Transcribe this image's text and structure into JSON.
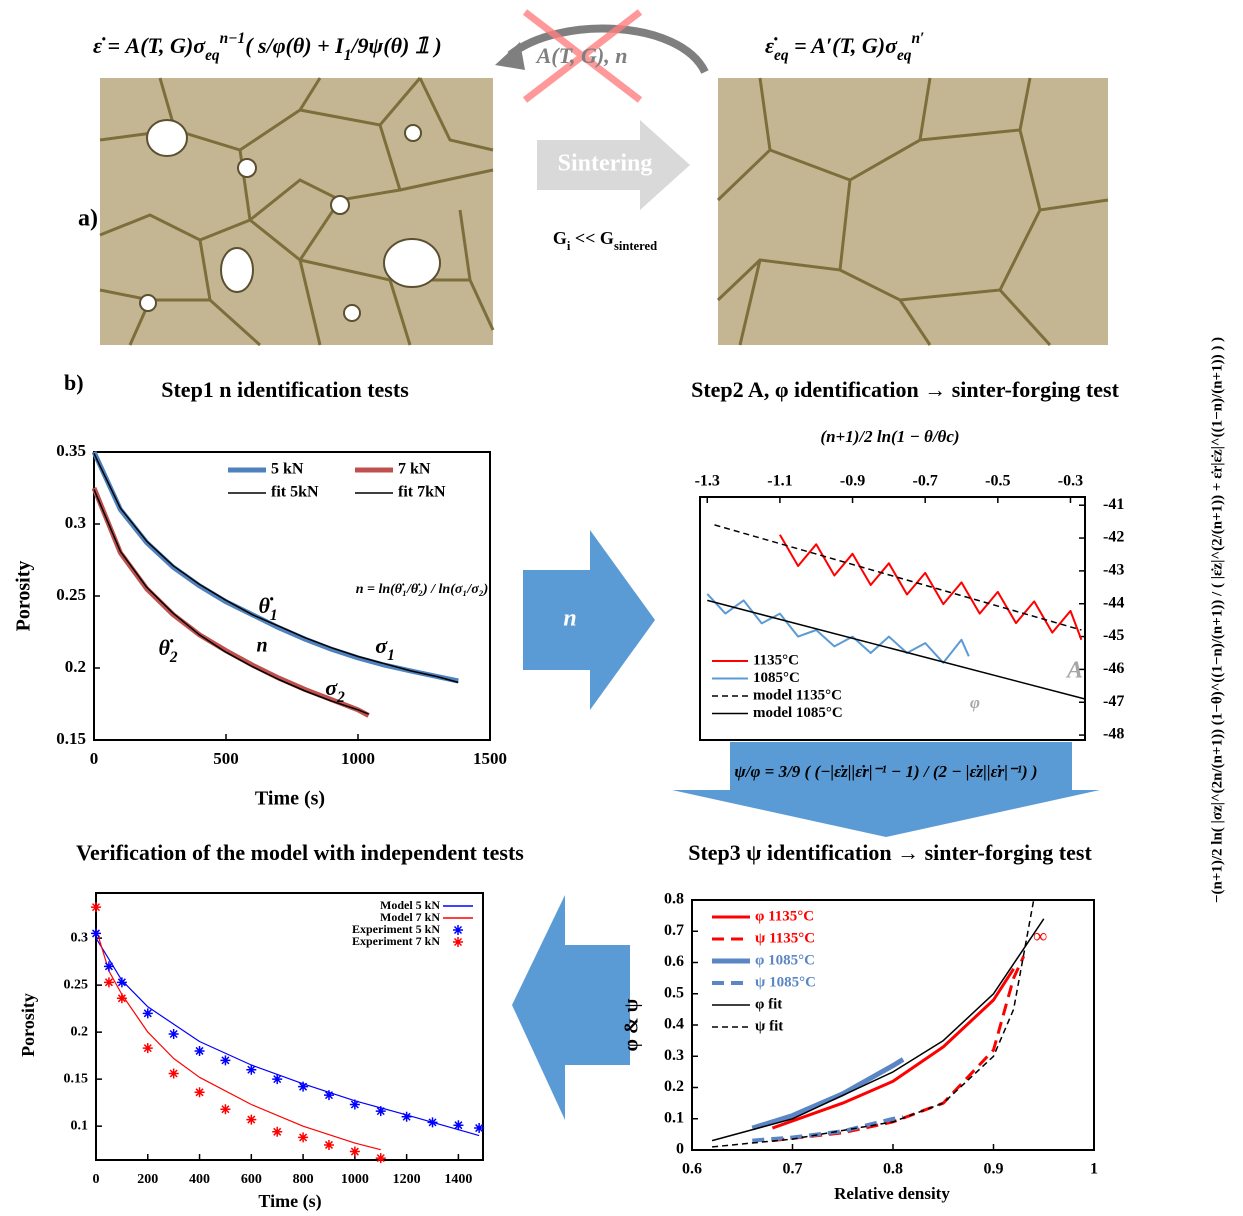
{
  "figure": {
    "eq_left": [
      "ε̇ = A(T, G)σ",
      {
        "sub": "eq"
      },
      {
        "sup": "n−1"
      },
      "( s/φ(θ) + I",
      {
        "sub": "1"
      },
      "/9ψ(θ) 𝟙 )"
    ],
    "crossed": "A(T, G), n",
    "eq_right": [
      "ε̇",
      {
        "sub": "eq"
      },
      " = A′(T, G)σ",
      {
        "sub": "eq"
      },
      {
        "sup": "n′"
      }
    ],
    "sintering": "Sintering",
    "panel_a": "a)",
    "grain_relation": [
      "G",
      {
        "sub": "i"
      },
      " << G",
      {
        "sub": "sintered"
      }
    ],
    "panel_b": "b)",
    "arrow_n": "n",
    "arrow_eq": "ψ/φ = 3/9 ( (−|ε̇z||ε̇r|⁻¹ − 1) / (2 − |ε̇z||ε̇r|⁻¹) )"
  },
  "chart_data": [
    {
      "type": "line",
      "title": "Step1 n identification tests",
      "xlabel": "Time (s)",
      "ylabel": "Porosity",
      "xlim": [
        0,
        1500
      ],
      "xticks": [
        0,
        500,
        1000,
        1500
      ],
      "ylim": [
        0.15,
        0.35
      ],
      "yticks": [
        0.15,
        0.2,
        0.25,
        0.3,
        0.35
      ],
      "series": [
        {
          "name": "5 kN",
          "color": "#4f81bd",
          "width": 5,
          "x": [
            0,
            100,
            200,
            300,
            400,
            500,
            600,
            700,
            800,
            900,
            1000,
            1100,
            1200,
            1300,
            1380
          ],
          "values": [
            0.35,
            0.31,
            0.287,
            0.27,
            0.257,
            0.246,
            0.237,
            0.228,
            0.22,
            0.213,
            0.207,
            0.202,
            0.198,
            0.194,
            0.191
          ]
        },
        {
          "name": "7 kN",
          "color": "#c0504d",
          "width": 5,
          "x": [
            0,
            100,
            200,
            300,
            400,
            500,
            600,
            700,
            800,
            900,
            1000,
            1040
          ],
          "values": [
            0.325,
            0.28,
            0.255,
            0.237,
            0.223,
            0.212,
            0.202,
            0.193,
            0.185,
            0.178,
            0.171,
            0.167
          ]
        },
        {
          "name": "fit 5kN",
          "color": "#000000",
          "width": 1.5,
          "x": [
            0,
            100,
            200,
            300,
            400,
            500,
            600,
            700,
            800,
            900,
            1000,
            1100,
            1200,
            1300,
            1380
          ],
          "values": [
            0.349,
            0.311,
            0.288,
            0.271,
            0.258,
            0.247,
            0.237,
            0.229,
            0.221,
            0.214,
            0.208,
            0.203,
            0.198,
            0.194,
            0.19
          ]
        },
        {
          "name": "fit 7kN",
          "color": "#000000",
          "width": 1.5,
          "x": [
            0,
            100,
            200,
            300,
            400,
            500,
            600,
            700,
            800,
            900,
            1000,
            1040
          ],
          "values": [
            0.324,
            0.281,
            0.256,
            0.238,
            0.223,
            0.211,
            0.201,
            0.192,
            0.184,
            0.177,
            0.171,
            0.168
          ]
        }
      ],
      "annotations": [
        "n = ln(θ̇₁/θ̇₂) / ln(σ₁/σ₂)",
        [
          "θ̇",
          {
            "sub": "1"
          }
        ],
        [
          "θ̇",
          {
            "sub": "2"
          }
        ],
        "n",
        [
          "σ",
          {
            "sub": "1"
          }
        ],
        [
          "σ",
          {
            "sub": "2"
          }
        ]
      ]
    },
    {
      "type": "line",
      "title": "Step2 A, φ identification → sinter-forging test",
      "xlabel": "(n+1)/2 ln(1 − θ/θc)",
      "ylabel": "−(n+1)/2 ln( |σz|^(2n/(n+1)) (1−θ)^((1−n)/(n+1)) / ( |ε̇z|^(2/(n+1)) + ε̇r|ε̇z|^((1−n)/(n+1)) ) )",
      "x_axis_position": "top",
      "y_axis_position": "right",
      "xlim": [
        -1.32,
        -0.26
      ],
      "xticks": [
        -1.3,
        -1.1,
        -0.9,
        -0.7,
        -0.5,
        -0.3
      ],
      "ylim": [
        -48.15,
        -40.75
      ],
      "yticks": [
        -41,
        -42,
        -43,
        -44,
        -45,
        -46,
        -47,
        -48
      ],
      "series": [
        {
          "name": "1135°C",
          "color": "#ff0000",
          "width": 2,
          "x": [
            -1.1,
            -1.05,
            -1.0,
            -0.95,
            -0.9,
            -0.85,
            -0.8,
            -0.75,
            -0.7,
            -0.65,
            -0.6,
            -0.55,
            -0.5,
            -0.45,
            -0.4,
            -0.35,
            -0.3,
            -0.27
          ],
          "values": [
            -41.9,
            -42.85,
            -42.19,
            -43.14,
            -42.48,
            -43.43,
            -42.77,
            -43.72,
            -43.06,
            -44.01,
            -43.35,
            -44.3,
            -43.64,
            -44.59,
            -43.93,
            -44.88,
            -44.22,
            -45.1
          ]
        },
        {
          "name": "1085°C",
          "color": "#5b9bd5",
          "width": 2,
          "x": [
            -1.3,
            -1.25,
            -1.2,
            -1.15,
            -1.1,
            -1.05,
            -1.0,
            -0.95,
            -0.9,
            -0.85,
            -0.8,
            -0.75,
            -0.7,
            -0.65,
            -0.6,
            -0.58
          ],
          "values": [
            -43.7,
            -44.3,
            -43.9,
            -44.6,
            -44.3,
            -45.0,
            -44.8,
            -45.3,
            -45.0,
            -45.5,
            -45.0,
            -45.5,
            -45.2,
            -45.8,
            -45.1,
            -45.6
          ]
        },
        {
          "name": "model 1135°C",
          "color": "#000000",
          "width": 1.5,
          "dash": true,
          "x": [
            -1.28,
            -0.27
          ],
          "values": [
            -41.6,
            -44.8
          ]
        },
        {
          "name": "model 1085°C",
          "color": "#000000",
          "width": 1.5,
          "x": [
            -1.3,
            -0.26
          ],
          "values": [
            -43.9,
            -46.9
          ]
        }
      ],
      "annotations": [
        "A",
        "φ"
      ]
    },
    {
      "type": "line",
      "title": "Step3 ψ identification → sinter-forging test",
      "xlabel": "Relative density",
      "ylabel": "φ & ψ",
      "xlim": [
        0.6,
        1
      ],
      "xticks": [
        0.6,
        0.7,
        0.8,
        0.9,
        1
      ],
      "ylim": [
        0,
        0.8
      ],
      "yticks": [
        0,
        0.1,
        0.2,
        0.3,
        0.4,
        0.5,
        0.6,
        0.7,
        0.8
      ],
      "legend_text_colored": true,
      "series": [
        {
          "name": "φ 1135°C",
          "color": "#ff0000",
          "width": 3,
          "x": [
            0.68,
            0.75,
            0.8,
            0.85,
            0.9,
            0.92
          ],
          "values": [
            0.07,
            0.15,
            0.22,
            0.33,
            0.48,
            0.58
          ]
        },
        {
          "name": "ψ 1135°C",
          "color": "#ff0000",
          "width": 3,
          "dash": true,
          "x": [
            0.68,
            0.75,
            0.8,
            0.85,
            0.9,
            0.92,
            0.93
          ],
          "values": [
            0.03,
            0.055,
            0.09,
            0.15,
            0.32,
            0.55,
            0.62
          ]
        },
        {
          "name": "φ 1085°C",
          "color": "#5b86c5",
          "width": 5,
          "x": [
            0.66,
            0.7,
            0.75,
            0.8,
            0.81
          ],
          "values": [
            0.07,
            0.11,
            0.18,
            0.27,
            0.29
          ]
        },
        {
          "name": "ψ 1085°C",
          "color": "#5b86c5",
          "width": 4,
          "dash": true,
          "x": [
            0.66,
            0.7,
            0.75,
            0.8,
            0.81
          ],
          "values": [
            0.03,
            0.04,
            0.06,
            0.1,
            0.105
          ]
        },
        {
          "name": "φ fit",
          "color": "#000000",
          "width": 1.5,
          "x": [
            0.62,
            0.7,
            0.8,
            0.85,
            0.9,
            0.95
          ],
          "values": [
            0.03,
            0.1,
            0.25,
            0.35,
            0.5,
            0.74
          ]
        },
        {
          "name": "ψ fit",
          "color": "#000000",
          "width": 1.5,
          "dash": true,
          "x": [
            0.62,
            0.7,
            0.8,
            0.85,
            0.9,
            0.92,
            0.94
          ],
          "values": [
            0.01,
            0.035,
            0.09,
            0.15,
            0.3,
            0.45,
            0.8
          ]
        }
      ],
      "annotations": [
        "∞"
      ]
    },
    {
      "type": "line",
      "title": "Verification of the model with independent tests",
      "xlabel": "Time (s)",
      "ylabel": "Porosity",
      "xlim": [
        0,
        1495
      ],
      "xticks": [
        0,
        200,
        400,
        600,
        800,
        1000,
        1200,
        1400
      ],
      "ylim": [
        0.064,
        0.348
      ],
      "yticks": [
        0.1,
        0.15,
        0.2,
        0.25,
        0.3
      ],
      "series": [
        {
          "name": "Model 5 kN",
          "color": "#0000ff",
          "width": 1.2,
          "x": [
            0,
            100,
            200,
            400,
            600,
            800,
            1000,
            1200,
            1480
          ],
          "values": [
            0.3,
            0.255,
            0.227,
            0.19,
            0.165,
            0.145,
            0.127,
            0.112,
            0.09
          ]
        },
        {
          "name": "Model 7 kN",
          "color": "#ff0000",
          "width": 1.2,
          "x": [
            0,
            50,
            100,
            200,
            300,
            400,
            600,
            800,
            1000,
            1100
          ],
          "values": [
            0.31,
            0.265,
            0.24,
            0.2,
            0.172,
            0.152,
            0.123,
            0.1,
            0.082,
            0.075
          ]
        },
        {
          "name": "Experiment 5 kN",
          "color": "#0000ff",
          "style": "markers",
          "x": [
            0,
            50,
            100,
            200,
            300,
            400,
            500,
            600,
            700,
            800,
            900,
            1000,
            1100,
            1200,
            1300,
            1400,
            1480
          ],
          "values": [
            0.305,
            0.27,
            0.253,
            0.22,
            0.198,
            0.18,
            0.17,
            0.16,
            0.15,
            0.142,
            0.133,
            0.123,
            0.116,
            0.11,
            0.104,
            0.101,
            0.098
          ]
        },
        {
          "name": "Experiment 7 kN",
          "color": "#ff0000",
          "style": "markers",
          "x": [
            0,
            50,
            100,
            200,
            300,
            400,
            500,
            600,
            700,
            800,
            900,
            1000,
            1100
          ],
          "values": [
            0.333,
            0.253,
            0.236,
            0.183,
            0.156,
            0.136,
            0.118,
            0.107,
            0.094,
            0.088,
            0.08,
            0.073,
            0.066
          ]
        }
      ]
    }
  ]
}
